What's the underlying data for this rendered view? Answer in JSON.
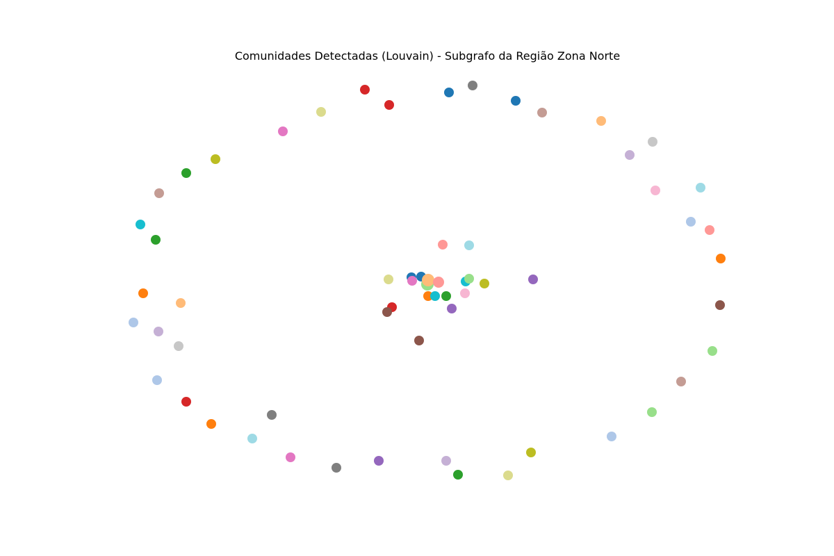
{
  "chart_data": {
    "type": "network",
    "title": "Comunidades Detectadas (Louvain) - Subgrafo da Região Zona Norte",
    "palette": {
      "blue": "#1f77b4",
      "light-blue": "#aec7e8",
      "orange": "#ff7f0e",
      "light-orange": "#ffbb78",
      "green": "#2ca02c",
      "light-green": "#98df8a",
      "red": "#d62728",
      "light-red": "#ff9896",
      "purple": "#9467bd",
      "light-purple": "#c5b0d5",
      "brown": "#8c564b",
      "light-brown": "#c49c94",
      "pink": "#e377c2",
      "light-pink": "#f7b6d2",
      "gray": "#7f7f7f",
      "light-gray": "#c7c7c7",
      "olive": "#bcbd22",
      "light-olive": "#dbdb8d",
      "cyan": "#17becf",
      "light-cyan": "#9edae5"
    },
    "nodes": [
      {
        "color": "red"
      },
      {
        "color": "red"
      },
      {
        "color": "blue"
      },
      {
        "color": "gray"
      },
      {
        "color": "blue"
      },
      {
        "color": "light-brown"
      },
      {
        "color": "light-orange"
      },
      {
        "color": "light-gray"
      },
      {
        "color": "light-purple"
      },
      {
        "color": "light-pink"
      },
      {
        "color": "light-cyan"
      },
      {
        "color": "light-blue"
      },
      {
        "color": "light-red"
      },
      {
        "color": "orange"
      },
      {
        "color": "brown"
      },
      {
        "color": "light-green"
      },
      {
        "color": "light-brown"
      },
      {
        "color": "light-green"
      },
      {
        "color": "light-blue"
      },
      {
        "color": "olive"
      },
      {
        "color": "light-olive"
      },
      {
        "color": "green"
      },
      {
        "color": "light-purple"
      },
      {
        "color": "purple"
      },
      {
        "color": "gray"
      },
      {
        "color": "pink"
      },
      {
        "color": "light-cyan"
      },
      {
        "color": "orange"
      },
      {
        "color": "red"
      },
      {
        "color": "light-blue"
      },
      {
        "color": "light-gray"
      },
      {
        "color": "light-purple"
      },
      {
        "color": "light-blue"
      },
      {
        "color": "orange"
      },
      {
        "color": "light-orange"
      },
      {
        "color": "green"
      },
      {
        "color": "cyan"
      },
      {
        "color": "light-brown"
      },
      {
        "color": "green"
      },
      {
        "color": "olive"
      },
      {
        "color": "pink"
      },
      {
        "color": "light-olive"
      },
      {
        "color": "gray"
      },
      {
        "color": "light-red"
      },
      {
        "color": "light-cyan"
      },
      {
        "color": "light-olive"
      },
      {
        "color": "blue"
      },
      {
        "color": "blue"
      },
      {
        "color": "pink"
      },
      {
        "color": "light-green"
      },
      {
        "color": "light-orange"
      },
      {
        "color": "light-red"
      },
      {
        "color": "cyan"
      },
      {
        "color": "light-green"
      },
      {
        "color": "olive"
      },
      {
        "color": "purple"
      },
      {
        "color": "orange"
      },
      {
        "color": "cyan"
      },
      {
        "color": "green"
      },
      {
        "color": "light-pink"
      },
      {
        "color": "red"
      },
      {
        "color": "brown"
      },
      {
        "color": "purple"
      },
      {
        "color": "brown"
      }
    ]
  }
}
